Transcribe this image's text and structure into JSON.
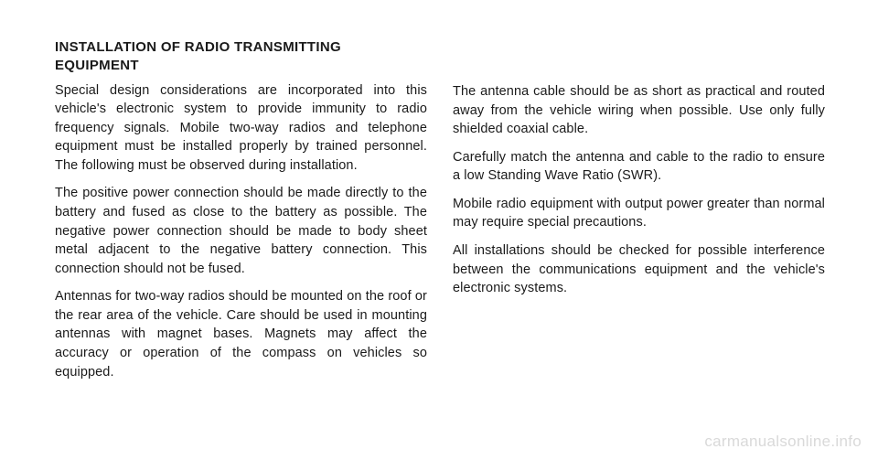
{
  "heading": "INSTALLATION OF RADIO TRANSMITTING EQUIPMENT",
  "left_paragraphs": [
    "Special design considerations are incorporated into this vehicle's electronic system to provide immunity to radio frequency signals. Mobile two-way radios and telephone equipment must be installed properly by trained personnel. The following must be observed during installation.",
    "The positive power connection should be made directly to the battery and fused as close to the battery as possible. The negative power connection should be made to body sheet metal adjacent to the negative battery connection. This connection should not be fused.",
    "Antennas for two-way radios should be mounted on the roof or the rear area of the vehicle. Care should be used in mounting antennas with magnet bases. Magnets may affect the accuracy or operation of the compass on vehicles so equipped."
  ],
  "right_paragraphs": [
    "The antenna cable should be as short as practical and routed away from the vehicle wiring when possible. Use only fully shielded coaxial cable.",
    "Carefully match the antenna and cable to the radio to ensure a low Standing Wave Ratio (SWR).",
    "Mobile radio equipment with output power greater than normal may require special precautions.",
    "All installations should be checked for possible interference between the communications equipment and the vehicle's electronic systems."
  ],
  "watermark": "carmanualsonline.info"
}
